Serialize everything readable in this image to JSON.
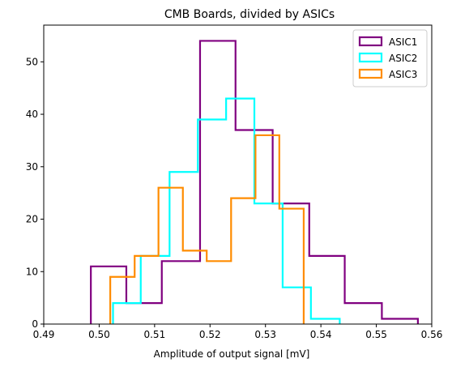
{
  "chart_data": {
    "type": "histogram",
    "title": "CMB Boards, divided by ASICs",
    "xlabel": "Amplitude of output signal [mV]",
    "ylabel": "",
    "xlim": [
      0.49,
      0.56
    ],
    "ylim": [
      0,
      57
    ],
    "x_ticks": [
      "0.49",
      "0.50",
      "0.51",
      "0.52",
      "0.53",
      "0.54",
      "0.55",
      "0.56"
    ],
    "y_ticks": [
      "0",
      "10",
      "20",
      "30",
      "40",
      "50"
    ],
    "grid": false,
    "legend_position": "top-right",
    "series": [
      {
        "name": "ASIC1",
        "color": "#800080",
        "bin_edges": [
          0.4985,
          0.5049,
          0.5113,
          0.5182,
          0.5246,
          0.5313,
          0.5379,
          0.5443,
          0.551,
          0.5575
        ],
        "counts": [
          11,
          4,
          12,
          54,
          37,
          23,
          13,
          4,
          1
        ]
      },
      {
        "name": "ASIC2",
        "color": "#00ffff",
        "bin_edges": [
          0.5025,
          0.5075,
          0.5127,
          0.5178,
          0.5229,
          0.528,
          0.5331,
          0.5382,
          0.5434
        ],
        "counts": [
          4,
          13,
          29,
          39,
          43,
          23,
          7,
          1
        ]
      },
      {
        "name": "ASIC3",
        "color": "#ff8c00",
        "bin_edges": [
          0.502,
          0.5064,
          0.5107,
          0.5151,
          0.5194,
          0.5238,
          0.5282,
          0.5325,
          0.5369
        ],
        "counts": [
          9,
          13,
          26,
          14,
          12,
          24,
          36,
          22
        ]
      }
    ]
  }
}
